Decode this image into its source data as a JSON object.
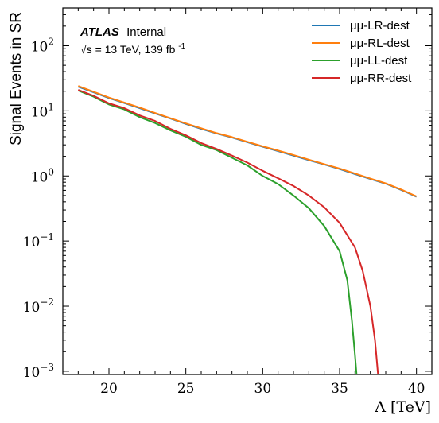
{
  "chart_data": {
    "type": "line",
    "title": "",
    "xlabel": "Λ [TeV]",
    "ylabel": "Signal Events in SR",
    "annotation": {
      "experiment": "ATLAS",
      "status": "Internal",
      "energy": "√s = 13 TeV, 139 fb",
      "lumi_exponent": "-1"
    },
    "xlim": [
      17,
      41
    ],
    "ylim_log10": [
      -3.05,
      2.58
    ],
    "y_log_scale": true,
    "x_ticks": [
      20,
      25,
      30,
      35,
      40
    ],
    "x_tick_labels": [
      "20",
      "25",
      "30",
      "35",
      "40"
    ],
    "y_tick_exponents": [
      -3,
      -2,
      -1,
      0,
      1,
      2
    ],
    "y_tick_labels": [
      "10",
      "10",
      "10",
      "10",
      "10",
      "10"
    ],
    "y_tick_exponent_labels": [
      "−3",
      "−2",
      "−1",
      "0",
      "1",
      "2"
    ],
    "legend_position": "top-right",
    "series": [
      {
        "name": "μμ-LR-dest",
        "color": "#1f77b4",
        "x": [
          18,
          19,
          20,
          21,
          22,
          23,
          24,
          25,
          26,
          27,
          28,
          29,
          30,
          31,
          32,
          33,
          34,
          35,
          36,
          37,
          38,
          39,
          40
        ],
        "y": [
          23.5,
          19.3,
          15.7,
          13.2,
          11.0,
          9.1,
          7.6,
          6.3,
          5.3,
          4.5,
          3.9,
          3.3,
          2.8,
          2.4,
          2.05,
          1.75,
          1.5,
          1.28,
          1.07,
          0.9,
          0.76,
          0.61,
          0.48
        ]
      },
      {
        "name": "μμ-RL-dest",
        "color": "#ff7f0e",
        "x": [
          18,
          19,
          20,
          21,
          22,
          23,
          24,
          25,
          26,
          27,
          28,
          29,
          30,
          31,
          32,
          33,
          34,
          35,
          36,
          37,
          38,
          39,
          40
        ],
        "y": [
          24.0,
          19.6,
          16.0,
          13.4,
          11.2,
          9.25,
          7.7,
          6.4,
          5.4,
          4.55,
          3.95,
          3.35,
          2.85,
          2.45,
          2.1,
          1.78,
          1.52,
          1.3,
          1.09,
          0.91,
          0.77,
          0.62,
          0.485
        ]
      },
      {
        "name": "μμ-LL-dest",
        "color": "#2ca02c",
        "x": [
          18,
          19,
          20,
          21,
          22,
          23,
          24,
          25,
          26,
          27,
          28,
          29,
          30,
          31,
          32,
          33,
          34,
          35,
          35.5,
          35.8,
          36.0,
          36.1
        ],
        "y": [
          20.5,
          16.5,
          12.5,
          10.5,
          8.0,
          6.5,
          5.0,
          4.0,
          3.0,
          2.5,
          1.9,
          1.45,
          1.0,
          0.75,
          0.5,
          0.32,
          0.17,
          0.07,
          0.025,
          0.006,
          0.0018,
          0.0009
        ]
      },
      {
        "name": "μμ-RR-dest",
        "color": "#d62728",
        "x": [
          18,
          19,
          20,
          21,
          22,
          23,
          24,
          25,
          26,
          27,
          28,
          29,
          30,
          31,
          32,
          33,
          34,
          35,
          36,
          36.5,
          37.0,
          37.3,
          37.45,
          37.5
        ],
        "y": [
          21.0,
          17.0,
          13.0,
          11.0,
          8.5,
          7.0,
          5.3,
          4.2,
          3.2,
          2.6,
          2.05,
          1.6,
          1.2,
          0.92,
          0.7,
          0.5,
          0.33,
          0.19,
          0.08,
          0.035,
          0.01,
          0.003,
          0.0012,
          0.0009
        ]
      }
    ]
  }
}
